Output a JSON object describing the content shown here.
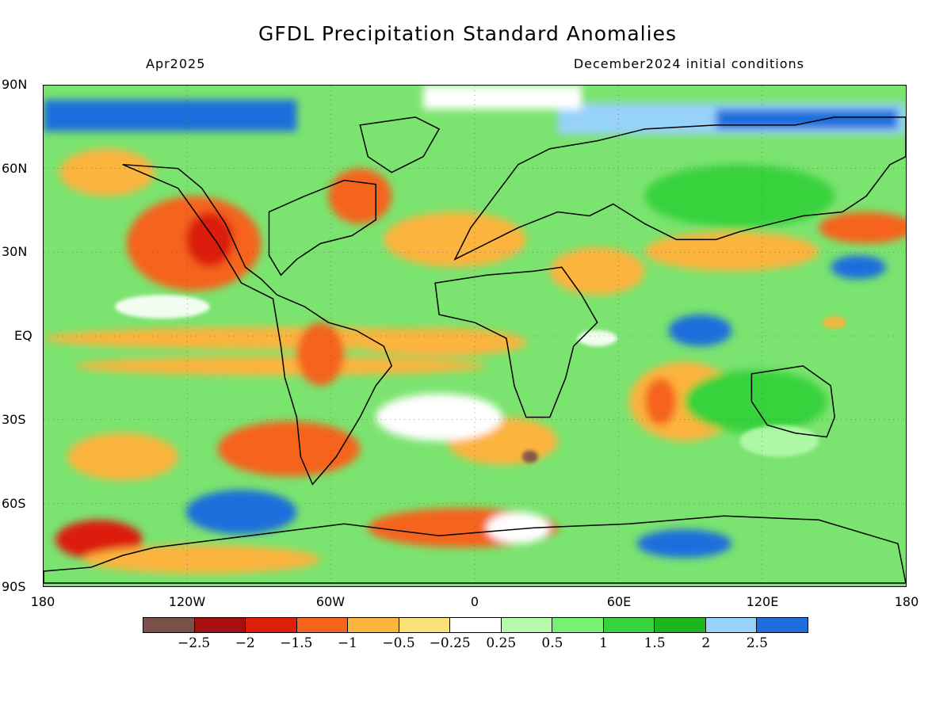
{
  "title": "GFDL Precipitation Standard Anomalies",
  "subtitle_left": "Apr2025",
  "subtitle_right": "December2024 initial conditions",
  "lat_labels": [
    "90N",
    "60N",
    "30N",
    "EQ",
    "30S",
    "60S",
    "90S"
  ],
  "lon_labels": [
    "180",
    "120W",
    "60W",
    "0",
    "60E",
    "120E",
    "180"
  ],
  "colorbar": {
    "colors": [
      "#7a5048",
      "#a50f0f",
      "#dc1e0a",
      "#f5641e",
      "#fbb43c",
      "#fbe178",
      "#ffffff",
      "#b4faaa",
      "#78f073",
      "#37d23c",
      "#1eb41e",
      "#96d2fa",
      "#1e6edc"
    ],
    "labels": [
      "-2.5",
      "-2",
      "-1.5",
      "-1",
      "-0.5",
      "-0.25",
      "0.25",
      "0.5",
      "1",
      "1.5",
      "2",
      "2.5"
    ]
  },
  "chart_data": {
    "type": "heatmap",
    "title": "GFDL Precipitation Standard Anomalies",
    "x_range": [
      -180,
      180
    ],
    "y_range": [
      -90,
      90
    ],
    "x_ticks": [
      "180",
      "120W",
      "60W",
      "0",
      "60E",
      "120E",
      "180"
    ],
    "y_ticks": [
      "90N",
      "60N",
      "30N",
      "EQ",
      "30S",
      "60S",
      "90S"
    ],
    "levels": [
      -2.5,
      -2,
      -1.5,
      -1,
      -0.5,
      -0.25,
      0.25,
      0.5,
      1,
      1.5,
      2,
      2.5
    ]
  }
}
